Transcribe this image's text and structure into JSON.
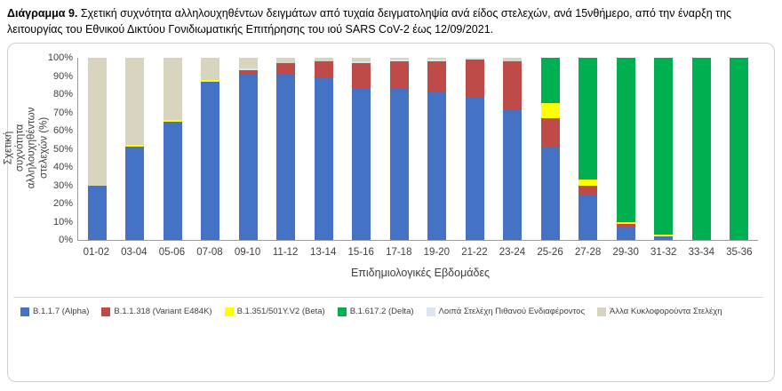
{
  "header": {
    "title_prefix": "Διάγραμμα 9.",
    "title_text": " Σχετική συχνότητα αλληλουχηθέντων δειγμάτων από τυχαία δειγματοληψία ανά είδος στελεχών, ανά 15νθήμερο, από την έναρξη της λειτουργίας του Εθνικού Δικτύου Γονιδιωματικής Επιτήρησης του ιού SARS CoV-2 έως 12/09/2021."
  },
  "chart_data": {
    "type": "bar",
    "stacked": true,
    "title": "",
    "xlabel": "Επιδημιολογικές Εβδομάδες",
    "ylabel": "Σχετική συχνότητα αλληλουχηθέντων στελεχών (%)",
    "ylim": [
      0,
      100
    ],
    "y_tick_step": 10,
    "y_tick_format": "percent",
    "grid": false,
    "legend_position": "bottom",
    "categories": [
      "01-02",
      "03-04",
      "05-06",
      "07-08",
      "09-10",
      "11-12",
      "13-14",
      "15-16",
      "17-18",
      "19-20",
      "21-22",
      "23-24",
      "25-26",
      "27-28",
      "29-30",
      "31-32",
      "33-34",
      "35-36"
    ],
    "series": [
      {
        "key": "alpha",
        "name": "B.1.1.7 (Alpha)",
        "color": "#4472C4",
        "values": [
          30,
          51,
          65,
          87,
          91,
          91,
          89,
          83,
          83,
          81,
          78,
          71,
          51,
          25,
          7,
          2,
          0,
          0
        ]
      },
      {
        "key": "e484k",
        "name": "B.1.1.318 (Variant E484K)",
        "color": "#BE4B48",
        "values": [
          0,
          0,
          0,
          0,
          2,
          6,
          9,
          14,
          15,
          17,
          21,
          27,
          16,
          5,
          2,
          0,
          0,
          0
        ]
      },
      {
        "key": "beta",
        "name": "B.1.351/501Y.V2 (Beta)",
        "color": "#FFFF00",
        "values": [
          0,
          1,
          1,
          1,
          0,
          0,
          0,
          0,
          0,
          0,
          0,
          0,
          8,
          3,
          1,
          1,
          0,
          0
        ]
      },
      {
        "key": "delta",
        "name": "B.1.617.2 (Delta)",
        "color": "#00B050",
        "values": [
          0,
          0,
          0,
          0,
          0,
          0,
          0,
          0,
          0,
          0,
          0,
          0,
          25,
          67,
          90,
          97,
          100,
          100
        ]
      },
      {
        "key": "other_interest",
        "name": "Λοιπά Στελέχη Πιθανού Ενδιαφέροντος",
        "color": "#DCE6F1",
        "values": [
          0,
          0,
          0,
          0,
          1,
          0,
          0,
          1,
          1,
          1,
          1,
          0,
          0,
          0,
          0,
          0,
          0,
          0
        ]
      },
      {
        "key": "other_circulating",
        "name": "Άλλα Κυκλοφορούντα Στελέχη",
        "color": "#D8D4BE",
        "values": [
          70,
          48,
          34,
          12,
          6,
          3,
          2,
          2,
          1,
          1,
          0,
          2,
          0,
          0,
          0,
          0,
          0,
          0
        ]
      }
    ]
  }
}
